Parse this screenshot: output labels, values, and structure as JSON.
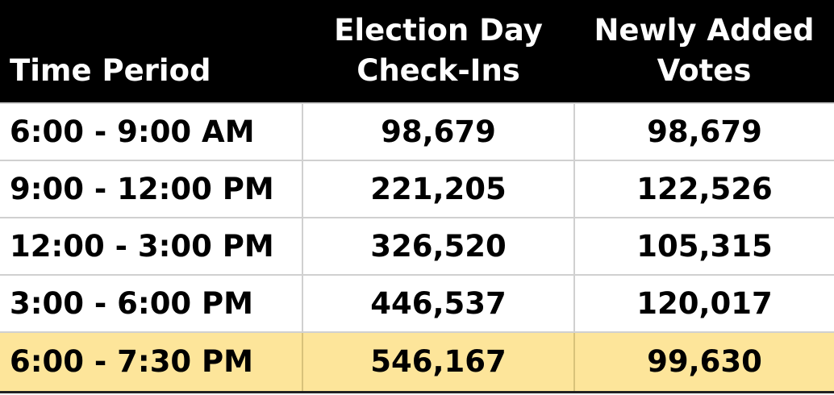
{
  "chart_data": {
    "type": "table",
    "columns": [
      "Time Period",
      "Election Day Check-Ins",
      "Newly Added Votes"
    ],
    "rows": [
      {
        "period": "6:00 - 9:00 AM",
        "checkins": "98,679",
        "new_votes": "98,679",
        "highlighted": false
      },
      {
        "period": "9:00 - 12:00 PM",
        "checkins": "221,205",
        "new_votes": "122,526",
        "highlighted": false
      },
      {
        "period": "12:00 - 3:00 PM",
        "checkins": "326,520",
        "new_votes": "105,315",
        "highlighted": false
      },
      {
        "period": "3:00 - 6:00 PM",
        "checkins": "446,537",
        "new_votes": "120,017",
        "highlighted": false
      },
      {
        "period": "6:00 - 7:30 PM",
        "checkins": "546,167",
        "new_votes": "99,630",
        "highlighted": true
      }
    ]
  },
  "colors": {
    "header_bg": "#000000",
    "header_text": "#ffffff",
    "highlight_row": "#fde59a",
    "grid": "#d0d0d0"
  }
}
